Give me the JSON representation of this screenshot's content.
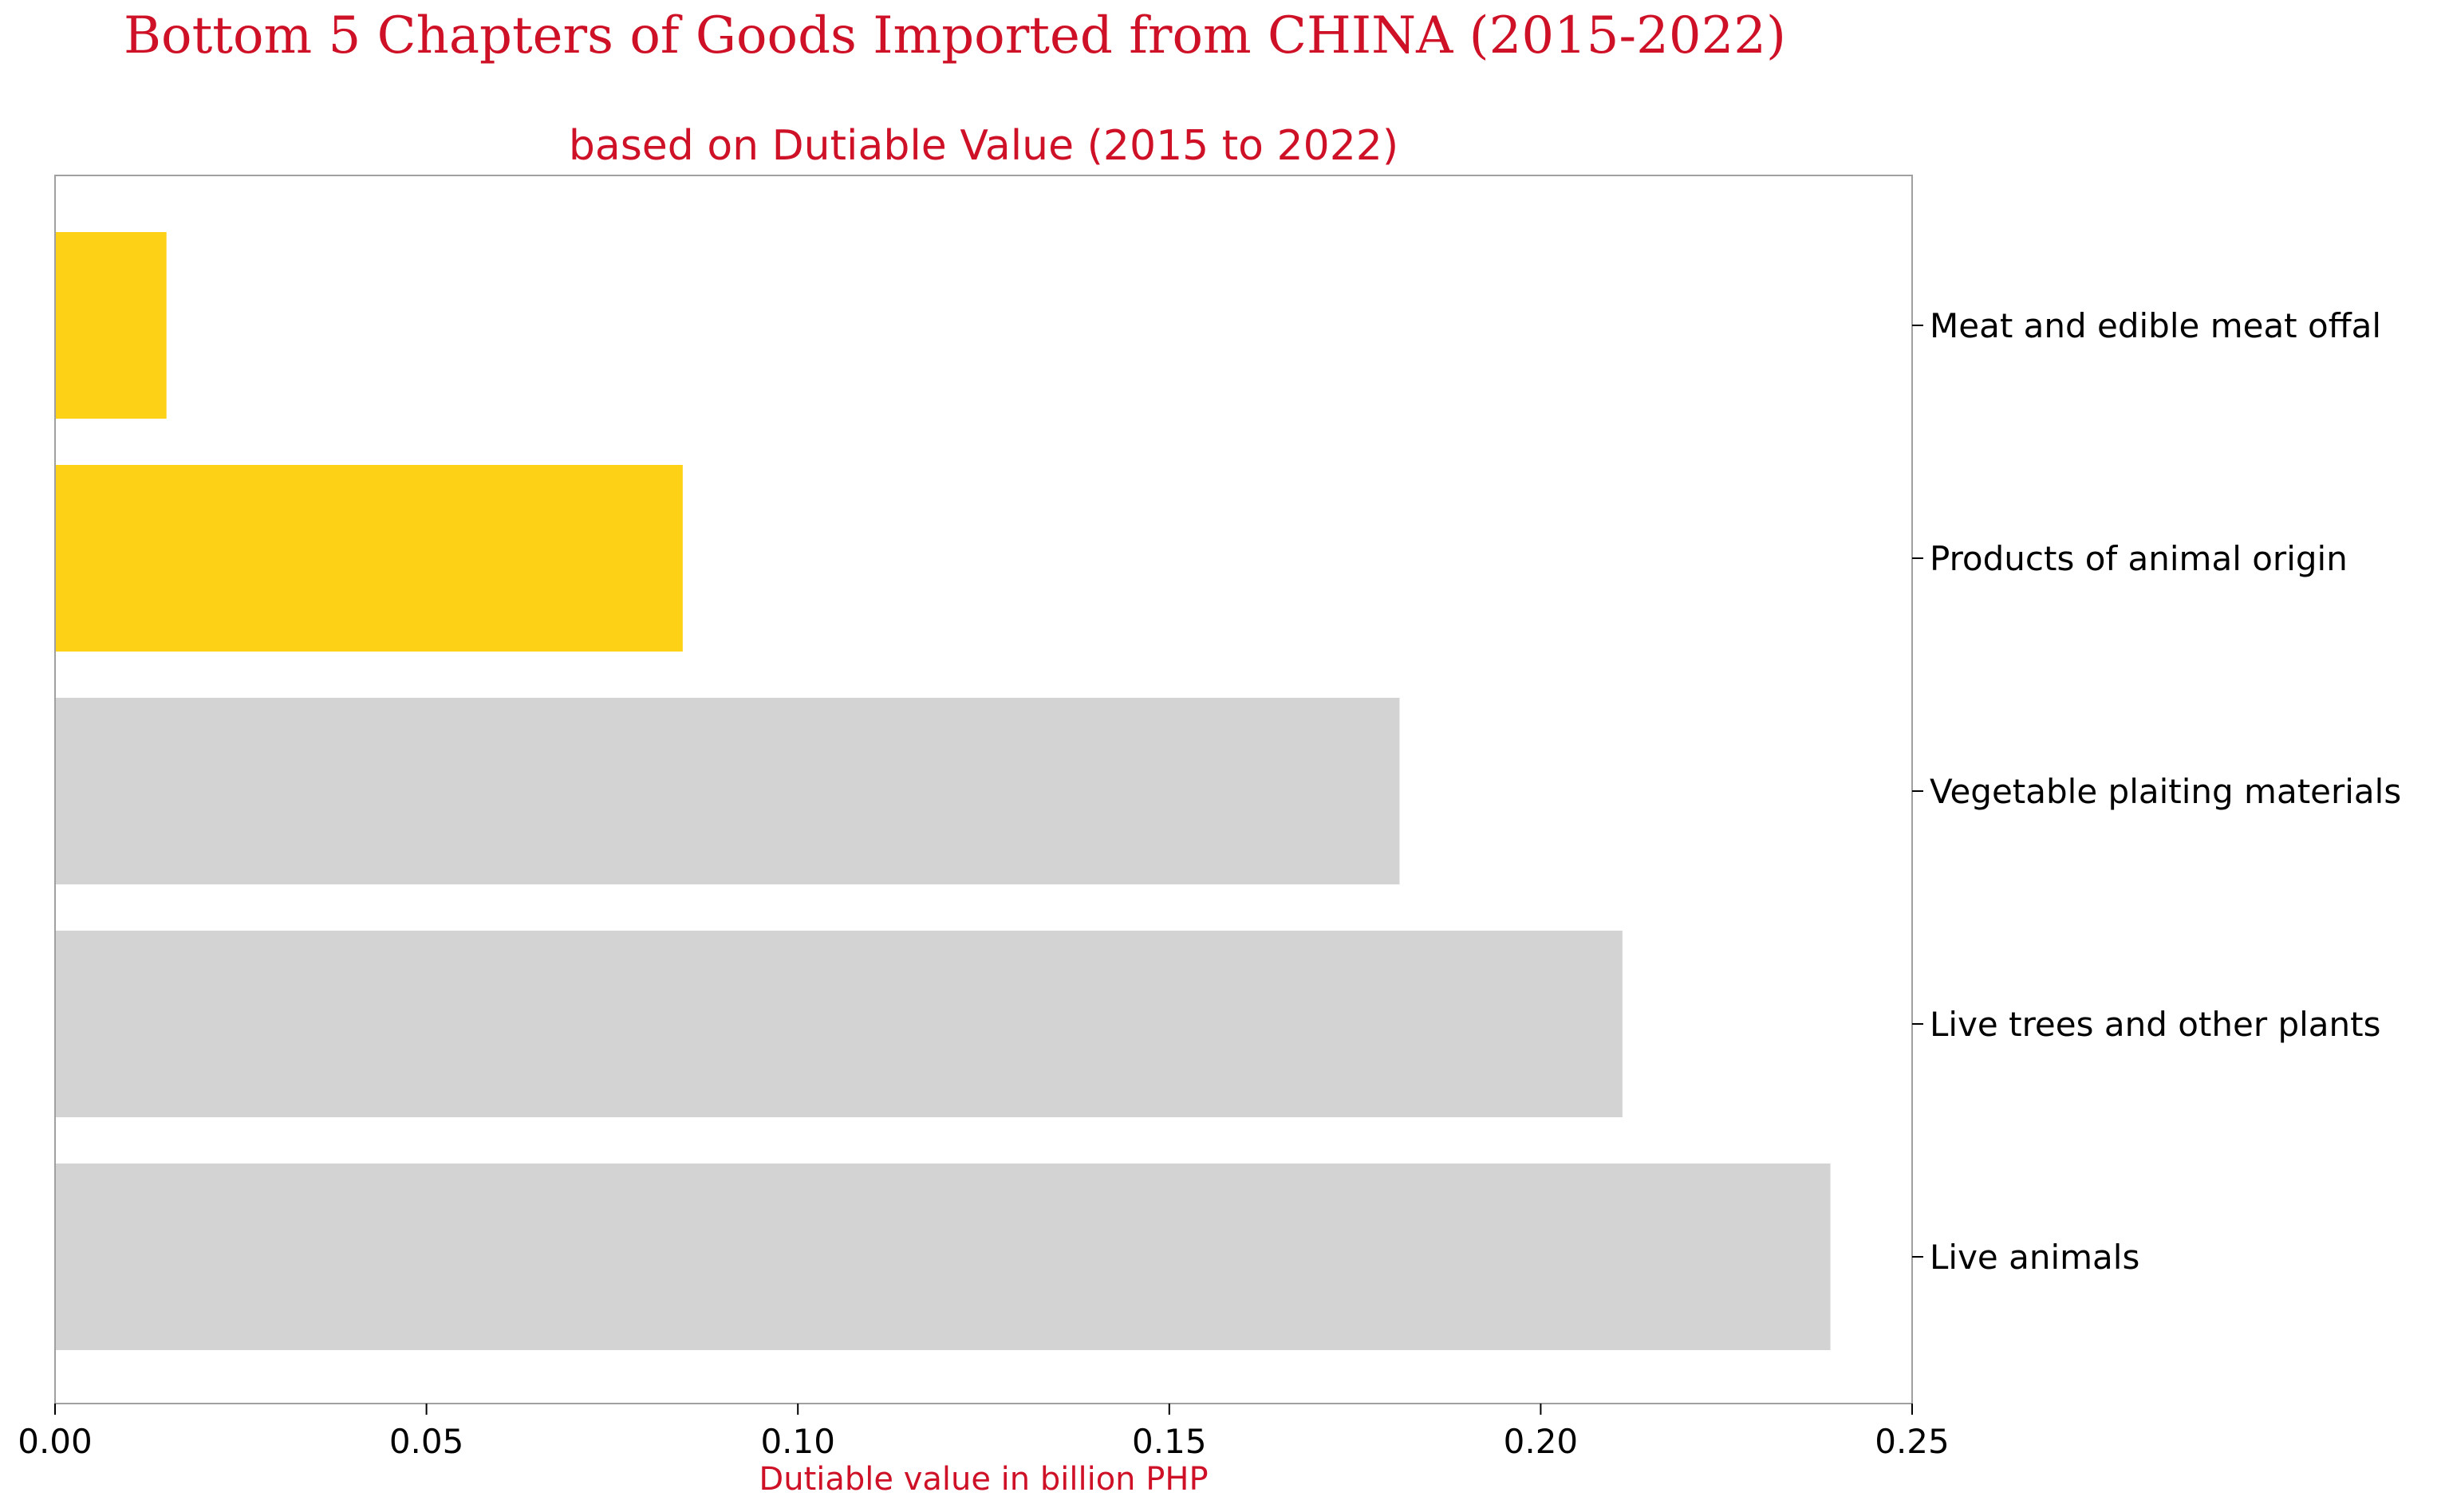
{
  "chart_data": {
    "type": "bar",
    "orientation": "horizontal",
    "title": "Bottom 5 Chapters of Goods Imported from CHINA (2015-2022)",
    "subtitle": "based on Dutiable Value (2015 to 2022)",
    "xlabel": "Dutiable value in billion PHP",
    "ylabel": "",
    "xlim": [
      0,
      0.25
    ],
    "xticks": [
      "0.00",
      "0.05",
      "0.10",
      "0.15",
      "0.20",
      "0.25"
    ],
    "category_axis_side": "right",
    "grid": false,
    "categories": [
      "Meat and edible meat offal",
      "Products of animal origin",
      "Vegetable plaiting materials",
      "Live trees and other plants",
      "Live animals"
    ],
    "values": [
      0.015,
      0.0845,
      0.181,
      0.211,
      0.239
    ],
    "colors": [
      "#FCD116",
      "#FCD116",
      "#D3D3D3",
      "#D3D3D3",
      "#D3D3D3"
    ],
    "title_color": "#CE1126",
    "label_color": "#CE1126"
  }
}
